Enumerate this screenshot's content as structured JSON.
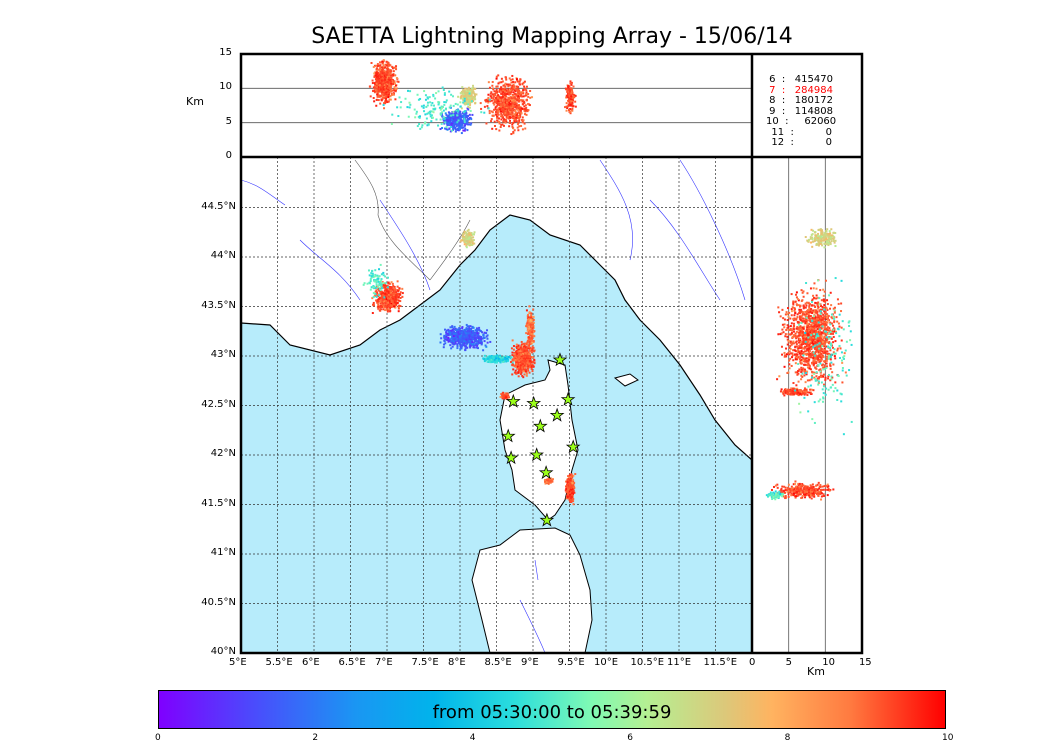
{
  "title": "SAETTA Lightning Mapping Array - 15/06/14",
  "colors": {
    "sea": "#b7ecfb",
    "highlight": "#ff0000"
  },
  "legend": [
    {
      "label": " 6  :   415470",
      "highlight": false
    },
    {
      "label": " 7  :   284984",
      "highlight": true
    },
    {
      "label": " 8  :   180172",
      "highlight": false
    },
    {
      "label": " 9  :   114808",
      "highlight": false
    },
    {
      "label": "10  :     62060",
      "highlight": false
    },
    {
      "label": "11  :          0",
      "highlight": false
    },
    {
      "label": "12  :          0",
      "highlight": false
    }
  ],
  "colorbar": {
    "text": "from 05:30:00 to 05:39:59",
    "ticks": [
      "0",
      "2",
      "4",
      "6",
      "8",
      "10"
    ],
    "range": [
      0,
      10
    ]
  },
  "chart_data": {
    "type": "scatter",
    "title": "SAETTA Lightning Mapping Array - 15/06/14",
    "lon_ticks": [
      "5°E",
      "5.5°E",
      "6°E",
      "6.5°E",
      "7°E",
      "7.5°E",
      "8°E",
      "8.5°E",
      "9°E",
      "9.5°E",
      "10°E",
      "10.5°E",
      "11°E",
      "11.5°E"
    ],
    "lat_ticks": [
      "40°N",
      "40.5°N",
      "41°N",
      "41.5°N",
      "42°N",
      "42.5°N",
      "43°N",
      "43.5°N",
      "44°N",
      "44.5°N"
    ],
    "alt_ticks": [
      "0",
      "5",
      "10",
      "15"
    ],
    "alt_label": "Km",
    "xlim_lon": [
      5,
      12
    ],
    "ylim_lat": [
      40,
      44.95
    ],
    "alt_range": [
      0,
      15
    ],
    "stations": [
      [
        9.37,
        42.96
      ],
      [
        8.73,
        42.54
      ],
      [
        9.01,
        42.52
      ],
      [
        9.48,
        42.56
      ],
      [
        9.33,
        42.4
      ],
      [
        9.1,
        42.29
      ],
      [
        8.66,
        42.19
      ],
      [
        9.55,
        42.08
      ],
      [
        9.05,
        42.0
      ],
      [
        8.7,
        41.97
      ],
      [
        9.18,
        41.82
      ],
      [
        9.19,
        41.34
      ]
    ],
    "plan_clusters": [
      {
        "lon": 7.0,
        "lat": 43.6,
        "rlon": 0.25,
        "rlat": 0.18,
        "t": 9,
        "n": 500
      },
      {
        "lon": 6.85,
        "lat": 43.75,
        "rlon": 0.2,
        "rlat": 0.2,
        "t": 5,
        "n": 80
      },
      {
        "lon": 8.05,
        "lat": 43.2,
        "rlon": 0.4,
        "rlat": 0.15,
        "t": 1.5,
        "n": 600
      },
      {
        "lon": 8.5,
        "lat": 42.98,
        "rlon": 0.25,
        "rlat": 0.05,
        "t": 4.3,
        "n": 200
      },
      {
        "lon": 8.85,
        "lat": 42.98,
        "rlon": 0.2,
        "rlat": 0.2,
        "t": 9,
        "n": 500
      },
      {
        "lon": 8.95,
        "lat": 43.3,
        "rlon": 0.08,
        "rlat": 0.25,
        "t": 8.5,
        "n": 200
      },
      {
        "lon": 8.1,
        "lat": 44.2,
        "rlon": 0.12,
        "rlat": 0.1,
        "t": 7,
        "n": 150
      },
      {
        "lon": 9.5,
        "lat": 41.67,
        "rlon": 0.08,
        "rlat": 0.18,
        "t": 9,
        "n": 250
      },
      {
        "lon": 9.2,
        "lat": 41.75,
        "rlon": 0.07,
        "rlat": 0.04,
        "t": 8.5,
        "n": 60
      },
      {
        "lon": 8.6,
        "lat": 42.6,
        "rlon": 0.1,
        "rlat": 0.05,
        "t": 9,
        "n": 50
      }
    ],
    "profile_clusters": [
      {
        "lon": 6.95,
        "alt": 11,
        "rlon": 0.22,
        "ralt": 4,
        "t": 9,
        "n": 600
      },
      {
        "lon": 7.95,
        "alt": 5.5,
        "rlon": 0.25,
        "ralt": 2,
        "t": 1.5,
        "n": 400
      },
      {
        "lon": 8.1,
        "alt": 9,
        "rlon": 0.15,
        "ralt": 2,
        "t": 7,
        "n": 200
      },
      {
        "lon": 8.65,
        "alt": 8,
        "rlon": 0.4,
        "ralt": 5,
        "t": 9,
        "n": 700
      },
      {
        "lon": 9.5,
        "alt": 9,
        "rlon": 0.08,
        "ralt": 3,
        "t": 9,
        "n": 150
      },
      {
        "lon": 7.7,
        "alt": 7,
        "rlon": 0.9,
        "ralt": 4,
        "t": 5,
        "n": 150
      }
    ],
    "side_clusters": [
      {
        "alt": 8,
        "lat": 43.2,
        "ralt": 5,
        "rlat": 0.6,
        "t": 9,
        "n": 1200
      },
      {
        "alt": 9.5,
        "lat": 44.2,
        "ralt": 2.5,
        "rlat": 0.12,
        "t": 7,
        "n": 200
      },
      {
        "alt": 6,
        "lat": 42.65,
        "ralt": 3,
        "rlat": 0.05,
        "t": 9,
        "n": 150
      },
      {
        "alt": 7,
        "lat": 41.65,
        "ralt": 5,
        "rlat": 0.1,
        "t": 9,
        "n": 300
      },
      {
        "alt": 3,
        "lat": 41.6,
        "ralt": 1.5,
        "rlat": 0.05,
        "t": 5,
        "n": 60
      },
      {
        "alt": 10,
        "lat": 43.0,
        "ralt": 5,
        "rlat": 1.0,
        "t": 5,
        "n": 150
      }
    ]
  }
}
